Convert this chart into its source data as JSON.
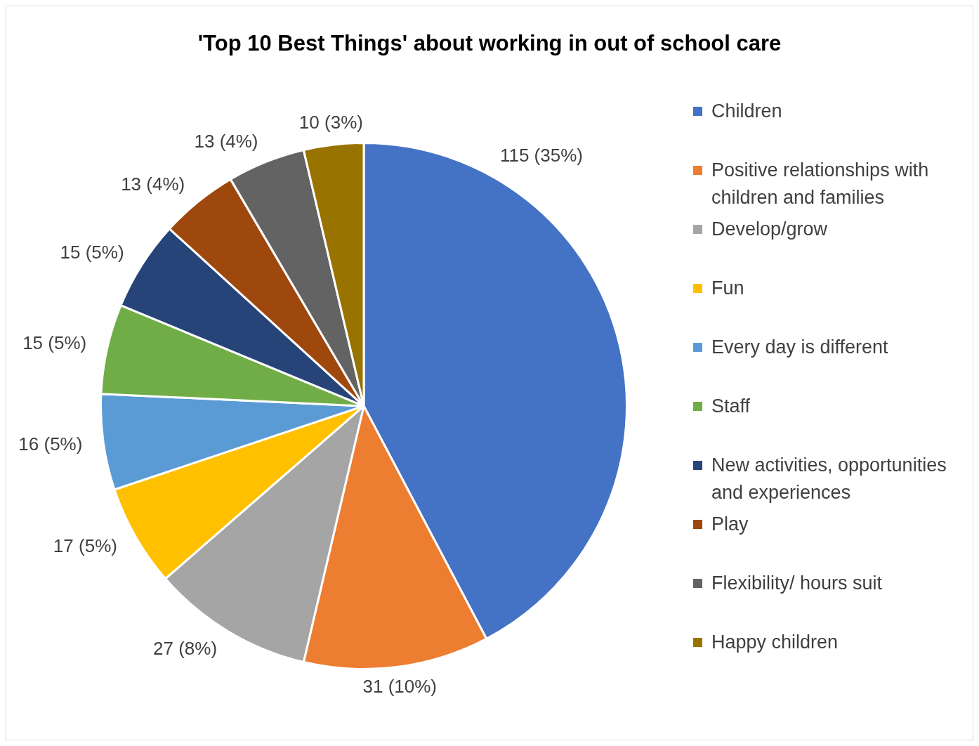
{
  "chart_data": {
    "type": "pie",
    "title": "'Top 10 Best Things' about working in out of school care",
    "categories": [
      "Children",
      "Positive relationships with children and families",
      "Develop/grow",
      "Fun",
      "Every day is different",
      "Staff",
      "New activities, opportunities and experiences",
      "Play",
      "Flexibility/ hours suit",
      "Happy children"
    ],
    "values": [
      115,
      31,
      27,
      17,
      16,
      15,
      15,
      13,
      13,
      10
    ],
    "value_labels": [
      "115 (35%)",
      "31 (10%)",
      "27 (8%)",
      "17 (5%)",
      "16 (5%)",
      "15 (5%)",
      "15 (5%)",
      "13 (4%)",
      "13 (4%)",
      "10 (3%)"
    ],
    "colors": [
      "#4472c4",
      "#ed7d31",
      "#a5a5a5",
      "#ffc000",
      "#5b9bd5",
      "#70ad47",
      "#264478",
      "#9e480e",
      "#636363",
      "#997300"
    ],
    "legend": "right"
  }
}
